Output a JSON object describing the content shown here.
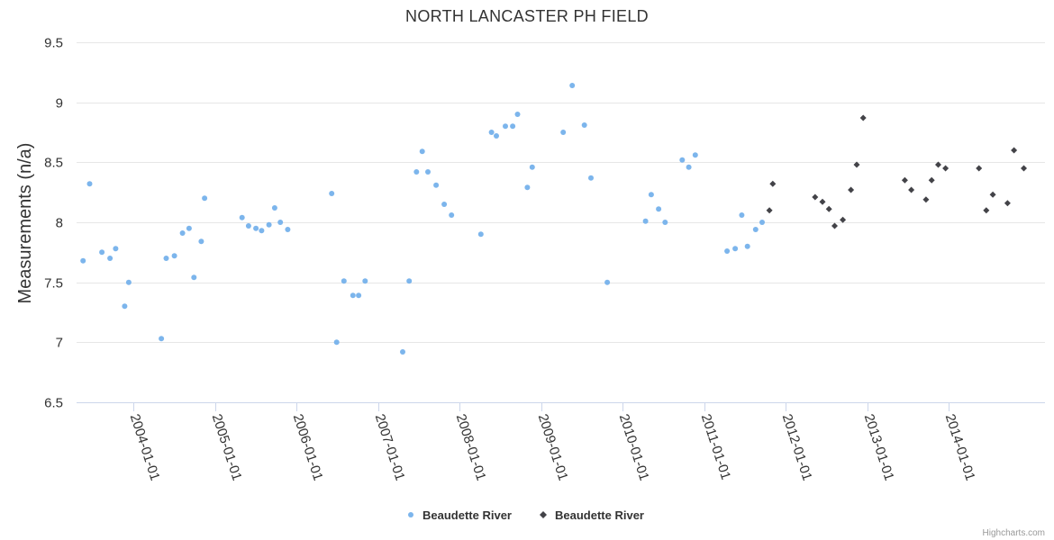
{
  "chart_data": {
    "type": "scatter",
    "title": "NORTH LANCASTER PH FIELD",
    "ylabel": "Measurements (n/a)",
    "xlabel": "",
    "ylim": [
      6.5,
      9.5
    ],
    "yticks": [
      "9.5",
      "9",
      "8.5",
      "8",
      "7.5",
      "7",
      "6.5"
    ],
    "xlim": [
      2003.3,
      2015.18
    ],
    "xticks": [
      {
        "label": "2004-01-01",
        "value": 2004
      },
      {
        "label": "2005-01-01",
        "value": 2005
      },
      {
        "label": "2006-01-01",
        "value": 2006
      },
      {
        "label": "2007-01-01",
        "value": 2007
      },
      {
        "label": "2008-01-01",
        "value": 2008
      },
      {
        "label": "2009-01-01",
        "value": 2009
      },
      {
        "label": "2010-01-01",
        "value": 2010
      },
      {
        "label": "2011-01-01",
        "value": 2011
      },
      {
        "label": "2012-01-01",
        "value": 2012
      },
      {
        "label": "2013-01-01",
        "value": 2013
      },
      {
        "label": "2014-01-01",
        "value": 2014
      }
    ],
    "series": [
      {
        "name": "Beaudette River",
        "marker": "circle",
        "color": "#7cb5ec",
        "points": [
          [
            2003.38,
            7.68
          ],
          [
            2003.46,
            8.32
          ],
          [
            2003.61,
            7.75
          ],
          [
            2003.71,
            7.7
          ],
          [
            2003.78,
            7.78
          ],
          [
            2003.89,
            7.3
          ],
          [
            2003.94,
            7.5
          ],
          [
            2004.34,
            7.03
          ],
          [
            2004.4,
            7.7
          ],
          [
            2004.5,
            7.72
          ],
          [
            2004.6,
            7.91
          ],
          [
            2004.68,
            7.95
          ],
          [
            2004.74,
            7.54
          ],
          [
            2004.83,
            7.84
          ],
          [
            2004.87,
            8.2
          ],
          [
            2005.33,
            8.04
          ],
          [
            2005.41,
            7.97
          ],
          [
            2005.5,
            7.95
          ],
          [
            2005.57,
            7.93
          ],
          [
            2005.66,
            7.98
          ],
          [
            2005.73,
            8.12
          ],
          [
            2005.8,
            8.0
          ],
          [
            2005.89,
            7.94
          ],
          [
            2006.43,
            8.24
          ],
          [
            2006.49,
            7.0
          ],
          [
            2006.58,
            7.51
          ],
          [
            2006.69,
            7.39
          ],
          [
            2006.76,
            7.39
          ],
          [
            2006.84,
            7.51
          ],
          [
            2007.3,
            6.92
          ],
          [
            2007.38,
            7.51
          ],
          [
            2007.47,
            8.42
          ],
          [
            2007.54,
            8.59
          ],
          [
            2007.61,
            8.42
          ],
          [
            2007.71,
            8.31
          ],
          [
            2007.81,
            8.15
          ],
          [
            2007.9,
            8.06
          ],
          [
            2008.26,
            7.9
          ],
          [
            2008.39,
            8.75
          ],
          [
            2008.45,
            8.72
          ],
          [
            2008.56,
            8.8
          ],
          [
            2008.65,
            8.8
          ],
          [
            2008.71,
            8.9
          ],
          [
            2008.83,
            8.29
          ],
          [
            2008.89,
            8.46
          ],
          [
            2009.27,
            8.75
          ],
          [
            2009.38,
            9.14
          ],
          [
            2009.53,
            8.81
          ],
          [
            2009.61,
            8.37
          ],
          [
            2009.81,
            7.5
          ],
          [
            2010.28,
            8.01
          ],
          [
            2010.35,
            8.23
          ],
          [
            2010.44,
            8.11
          ],
          [
            2010.52,
            8.0
          ],
          [
            2010.73,
            8.52
          ],
          [
            2010.81,
            8.46
          ],
          [
            2010.89,
            8.56
          ],
          [
            2011.28,
            7.76
          ],
          [
            2011.38,
            7.78
          ],
          [
            2011.46,
            8.06
          ],
          [
            2011.53,
            7.8
          ],
          [
            2011.63,
            7.94
          ],
          [
            2011.71,
            8.0
          ]
        ]
      },
      {
        "name": "Beaudette River",
        "marker": "diamond",
        "color": "#434348",
        "points": [
          [
            2011.8,
            8.1
          ],
          [
            2011.84,
            8.32
          ],
          [
            2012.36,
            8.21
          ],
          [
            2012.45,
            8.17
          ],
          [
            2012.53,
            8.11
          ],
          [
            2012.6,
            7.97
          ],
          [
            2012.7,
            8.02
          ],
          [
            2012.8,
            8.27
          ],
          [
            2012.87,
            8.48
          ],
          [
            2012.95,
            8.87
          ],
          [
            2013.46,
            8.35
          ],
          [
            2013.54,
            8.27
          ],
          [
            2013.72,
            8.19
          ],
          [
            2013.79,
            8.35
          ],
          [
            2013.87,
            8.48
          ],
          [
            2013.96,
            8.45
          ],
          [
            2014.37,
            8.45
          ],
          [
            2014.46,
            8.1
          ],
          [
            2014.54,
            8.23
          ],
          [
            2014.72,
            8.16
          ],
          [
            2014.8,
            8.6
          ],
          [
            2014.92,
            8.45
          ]
        ]
      }
    ],
    "legend": "bottom-center",
    "credits": "Highcharts.com"
  }
}
